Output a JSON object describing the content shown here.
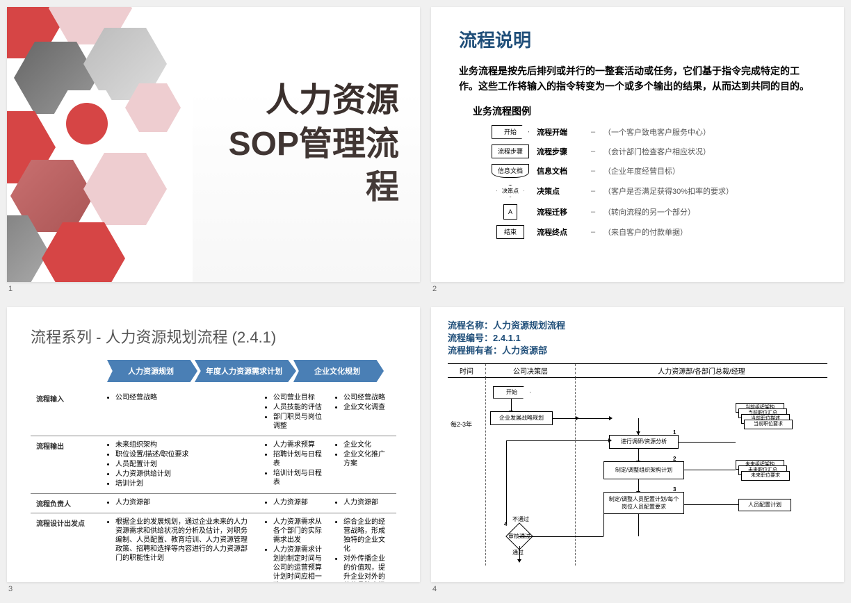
{
  "slide1": {
    "title_line1": "人力资源",
    "title_line2": "SOP管理流程",
    "number": "1",
    "accent_color": "#d64545"
  },
  "slide2": {
    "number": "2",
    "title": "流程说明",
    "description": "业务流程是按先后排列或并行的一整套活动或任务，它们基于指令完成特定的工作。这些工作将输入的指令转变为一个或多个输出的结果，从而达到共同的目的。",
    "subtitle": "业务流程图例",
    "legend": [
      {
        "shape_label": "开始",
        "name": "流程开端",
        "example": "（一个客户致电客户服务中心）"
      },
      {
        "shape_label": "流程步骤",
        "name": "流程步骤",
        "example": "（会计部门检查客户相应状况）"
      },
      {
        "shape_label": "信息文档",
        "name": "信息文档",
        "example": "（企业年度经营目标）"
      },
      {
        "shape_label": "决策点",
        "name": "决策点",
        "example": "（客户是否满足获得30%扣率的要求）"
      },
      {
        "shape_label": "A",
        "name": "流程迁移",
        "example": "（转向流程的另一个部分）"
      },
      {
        "shape_label": "结束",
        "name": "流程终点",
        "example": "（来自客户的付款单据）"
      }
    ]
  },
  "slide3": {
    "title": "流程系列 - 人力资源规划流程 (2.4.1)",
    "tabs": [
      "人力资源规划",
      "年度人力资源需求计划",
      "企业文化规划"
    ],
    "rows": [
      {
        "label": "流程输入",
        "cols": [
          [
            "公司经营战略"
          ],
          [
            "公司营业目标",
            "人员技能的评估",
            "部门职员与岗位调整"
          ],
          [
            "公司经营战略",
            "企业文化调查"
          ]
        ]
      },
      {
        "label": "流程输出",
        "cols": [
          [
            "未来组织架构",
            "职位设置/描述/职位要求",
            "人员配置计划",
            "人力资源供给计划",
            "培训计划"
          ],
          [
            "人力需求预算",
            "招聘计划与日程表",
            "培训计划与日程表"
          ],
          [
            "企业文化",
            "企业文化推广方案"
          ]
        ]
      },
      {
        "label": "流程负责人",
        "cols": [
          [
            "人力资源部"
          ],
          [
            "人力资源部"
          ],
          [
            "人力资源部"
          ]
        ]
      },
      {
        "label": "流程设计出发点",
        "cols": [
          [
            "根据企业的发展规划，通过企业未来的人力资源需求和供给状况的分析及估计，对职务编制、人员配置、教育培训、人力资源管理政策、招聘和选择等内容进行的人力资源部门的职能性计划"
          ],
          [
            "人力资源需求从各个部门的实际需求出发",
            "人力资源需求计划的制定时间与公司的运营预算计划时间应相一致"
          ],
          [
            "综合企业的经营战略，形成独特的企业文化",
            "对外传播企业的价值观，提升企业对外的整体品牌内涵"
          ]
        ]
      }
    ]
  },
  "slide4": {
    "header": {
      "name_label": "流程名称：",
      "name": "人力资源规划流程",
      "code_label": "流程编号：",
      "code": "2.4.1.1",
      "owner_label": "流程拥有者：",
      "owner": "人力资源部"
    },
    "lanes": [
      "时间",
      "公司决策层",
      "人力资源部/各部门总裁/经理"
    ],
    "time_label": "每2-3年",
    "nodes": {
      "start": "开始",
      "strategy": "企业发展战略规划",
      "analysis": "进行调研/资源分析",
      "org_plan": "制定/调整组织架构计划",
      "staffing": "制定/调整人员配置计划/每个岗位人员配置要求",
      "review": "审核通过",
      "pass": "通过",
      "no_pass": "不通过",
      "docs_top": [
        "当前组织架构",
        "当前职位汇总",
        "当前职位描述",
        "当前职位要求"
      ],
      "docs_mid": [
        "未来组织架构",
        "未来职位汇总",
        "未来职位要求"
      ],
      "doc_bottom": "人员配置计划"
    },
    "nums": [
      "1",
      "2",
      "3",
      "4"
    ]
  }
}
